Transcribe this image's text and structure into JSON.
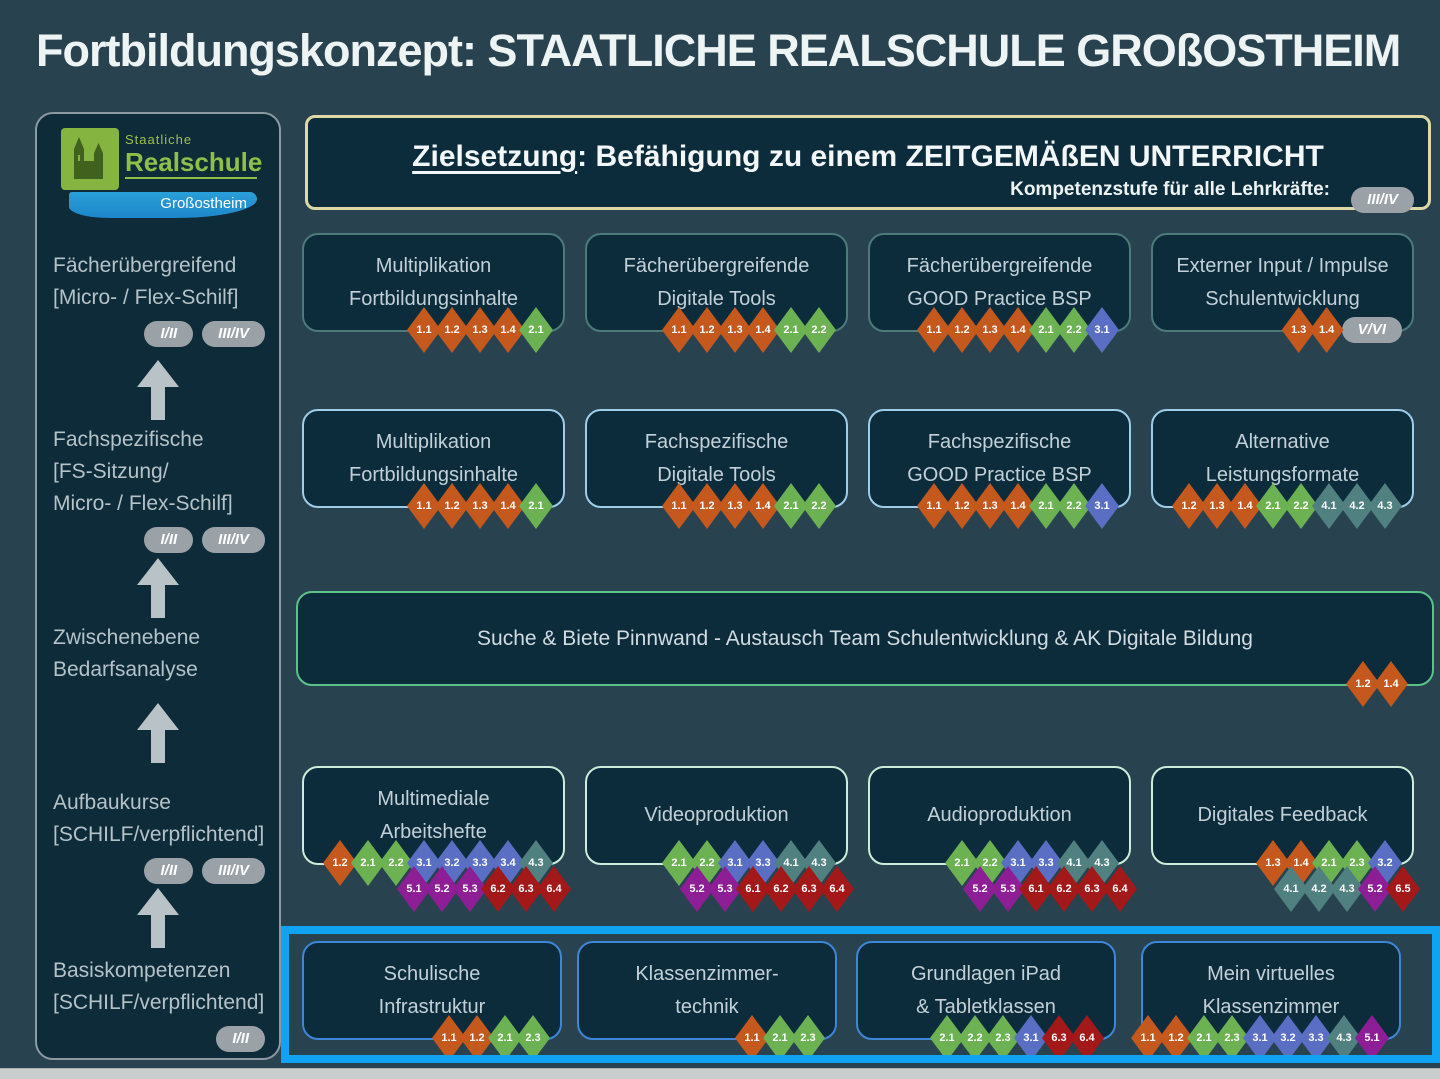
{
  "title": "Fortbildungskonzept: STAATLICHE REALSCHULE GROßOSTHEIM",
  "logo": {
    "line1": "Staatliche",
    "line2": "Realschule",
    "line3": "Großostheim"
  },
  "sidebar": {
    "items": [
      {
        "lines": [
          "Fächerübergreifend",
          "[Micro- / Flex-Schilf]"
        ],
        "badges": [
          "I/II",
          "III/IV"
        ]
      },
      {
        "lines": [
          "Fachspezifische",
          "[FS-Sitzung/",
          "Micro- / Flex-Schilf]"
        ],
        "badges": [
          "I/II",
          "III/IV"
        ]
      },
      {
        "lines": [
          "Zwischenebene",
          "Bedarfsanalyse"
        ],
        "badges": []
      },
      {
        "lines": [
          "Aufbaukurse",
          "[SCHILF/verpflichtend]"
        ],
        "badges": [
          "I/II",
          "III/IV"
        ]
      },
      {
        "lines": [
          "Basiskompetenzen",
          "[SCHILF/verpflichtend]"
        ],
        "badges": [
          "I/II"
        ]
      }
    ]
  },
  "goal": {
    "title_underlined": "Zielsetzung",
    "title_rest": ": Befähigung zu einem ZEITGEMÄßEN UNTERRICHT",
    "subtitle": "Kompetenzstufe für alle Lehrkräfte:",
    "badge": "III/IV"
  },
  "colors": {
    "background": "#28434f",
    "box_fill": "#0c2c3c",
    "highlight": "#10a3f1",
    "goal_border": "#ddd8a6",
    "sidebar_border": "#8d9aa1",
    "pill": "#9ba2a7",
    "logo_green": "#85b440",
    "logo_blue": "#1d87c9"
  },
  "diamond_colors": {
    "1": "#c4581d",
    "2": "#6cb152",
    "3": "#5a6fc4",
    "4": "#50807f",
    "5": "#8e1e96",
    "6": "#a31818"
  },
  "rows": [
    {
      "id": "row-top",
      "border_color": "#4d7b79",
      "boxes": [
        {
          "title_lines": [
            "Multiplikation",
            "Fortbildungsinhalte"
          ],
          "diamonds": [
            [
              "1.1",
              "1.2",
              "1.3",
              "1.4",
              "2.1"
            ]
          ]
        },
        {
          "title_lines": [
            "Fächerübergreifende",
            "Digitale Tools"
          ],
          "diamonds": [
            [
              "1.1",
              "1.2",
              "1.3",
              "1.4",
              "2.1",
              "2.2"
            ]
          ]
        },
        {
          "title_lines": [
            "Fächerübergreifende",
            "GOOD Practice BSP"
          ],
          "diamonds": [
            [
              "1.1",
              "1.2",
              "1.3",
              "1.4",
              "2.1",
              "2.2",
              "3.1"
            ]
          ]
        },
        {
          "title_lines": [
            "Externer Input / Impulse",
            "Schulentwicklung"
          ],
          "diamonds": [
            [
              "1.3",
              "1.4"
            ]
          ],
          "badge": "V/VI"
        }
      ]
    },
    {
      "id": "row-fach",
      "border_color": "#9ecde9",
      "boxes": [
        {
          "title_lines": [
            "Multiplikation",
            "Fortbildungsinhalte"
          ],
          "diamonds": [
            [
              "1.1",
              "1.2",
              "1.3",
              "1.4",
              "2.1"
            ]
          ]
        },
        {
          "title_lines": [
            "Fachspezifische",
            "Digitale Tools"
          ],
          "diamonds": [
            [
              "1.1",
              "1.2",
              "1.3",
              "1.4",
              "2.1",
              "2.2"
            ]
          ]
        },
        {
          "title_lines": [
            "Fachspezifische",
            "GOOD Practice BSP"
          ],
          "diamonds": [
            [
              "1.1",
              "1.2",
              "1.3",
              "1.4",
              "2.1",
              "2.2",
              "3.1"
            ]
          ]
        },
        {
          "title_lines": [
            "Alternative",
            "Leistungsformate"
          ],
          "diamonds": [
            [
              "1.2",
              "1.3",
              "1.4",
              "2.1",
              "2.2",
              "4.1",
              "4.2",
              "4.3"
            ]
          ]
        }
      ]
    },
    {
      "id": "row-wide",
      "border_color": "#5ac388",
      "wide": true,
      "boxes": [
        {
          "title_lines": [
            "Suche & Biete Pinnwand - Austausch Team Schulentwicklung & AK Digitale Bildung"
          ],
          "diamonds": [
            [
              "1.2",
              "1.4"
            ]
          ]
        }
      ]
    },
    {
      "id": "row-aufbau",
      "border_color": "#cdecd9",
      "boxes": [
        {
          "title_lines": [
            "Multimediale",
            "Arbeitshefte"
          ],
          "diamonds": [
            [
              "1.2",
              "2.1",
              "2.2",
              "3.1",
              "3.2",
              "3.3",
              "3.4",
              "4.3"
            ],
            [
              "5.1",
              "5.2",
              "5.3",
              "6.2",
              "6.3",
              "6.4"
            ]
          ]
        },
        {
          "title_lines": [
            "Videoproduktion"
          ],
          "diamonds": [
            [
              "2.1",
              "2.2",
              "3.1",
              "3.3",
              "4.1",
              "4.3"
            ],
            [
              "5.2",
              "5.3",
              "6.1",
              "6.2",
              "6.3",
              "6.4"
            ]
          ]
        },
        {
          "title_lines": [
            "Audioproduktion"
          ],
          "diamonds": [
            [
              "2.1",
              "2.2",
              "3.1",
              "3.3",
              "4.1",
              "4.3"
            ],
            [
              "5.2",
              "5.3",
              "6.1",
              "6.2",
              "6.3",
              "6.4"
            ]
          ]
        },
        {
          "title_lines": [
            "Digitales Feedback"
          ],
          "diamonds": [
            [
              "1.3",
              "1.4",
              "2.1",
              "2.3",
              "3.2"
            ],
            [
              "4.1",
              "4.2",
              "4.3",
              "5.2",
              "6.5"
            ]
          ]
        }
      ]
    },
    {
      "id": "row-basis",
      "border_color": "#3e86d8",
      "boxes": [
        {
          "title_lines": [
            "Schulische",
            "Infrastruktur"
          ],
          "diamonds": [
            [
              "1.1",
              "1.2",
              "2.1",
              "2.3"
            ]
          ]
        },
        {
          "title_lines": [
            "Klassenzimmer-",
            "technik"
          ],
          "diamonds": [
            [
              "1.1",
              "2.1",
              "2.3"
            ]
          ]
        },
        {
          "title_lines": [
            "Grundlagen iPad",
            "& Tabletklassen"
          ],
          "diamonds": [
            [
              "2.1",
              "2.2",
              "2.3",
              "3.1",
              "6.3",
              "6.4"
            ]
          ]
        },
        {
          "title_lines": [
            "Mein virtuelles",
            "Klassenzimmer"
          ],
          "diamonds": [
            [
              "1.1",
              "1.2",
              "2.1",
              "2.3",
              "3.1",
              "3.2",
              "3.3",
              "4.3",
              "5.1"
            ]
          ]
        }
      ]
    }
  ]
}
